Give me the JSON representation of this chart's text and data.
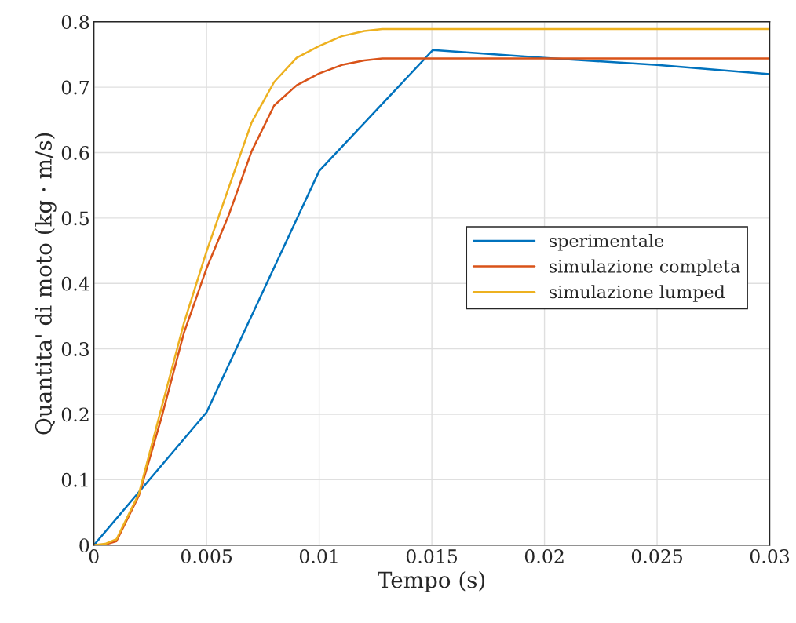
{
  "chart_data": {
    "type": "line",
    "xlabel": "Tempo (s)",
    "ylabel": "Quantita' di moto (kg · m/s)",
    "xlim": [
      0,
      0.03
    ],
    "ylim": [
      0,
      0.8
    ],
    "xticks": [
      0,
      0.005,
      0.01,
      0.015,
      0.02,
      0.025,
      0.03
    ],
    "yticks": [
      0,
      0.1,
      0.2,
      0.3,
      0.4,
      0.5,
      0.6,
      0.7,
      0.8
    ],
    "grid": true,
    "legend": "right",
    "line_style": "solid",
    "marker": "none",
    "series": [
      {
        "name": "sperimentale",
        "color": "#0072bd",
        "x": [
          0,
          0.005,
          0.01,
          0.01505,
          0.02,
          0.025,
          0.03
        ],
        "values": [
          0,
          0.203,
          0.572,
          0.757,
          0.745,
          0.734,
          0.72
        ]
      },
      {
        "name": "simulazione completa",
        "color": "#d95319",
        "x": [
          0,
          0.0005,
          0.001,
          0.002,
          0.003,
          0.004,
          0.005,
          0.006,
          0.007,
          0.008,
          0.009,
          0.01,
          0.011,
          0.012,
          0.0128,
          0.03
        ],
        "values": [
          0,
          0.001,
          0.006,
          0.076,
          0.195,
          0.325,
          0.423,
          0.506,
          0.602,
          0.672,
          0.703,
          0.721,
          0.734,
          0.741,
          0.744,
          0.744
        ]
      },
      {
        "name": "simulazione lumped",
        "color": "#edb120",
        "x": [
          0,
          0.0005,
          0.001,
          0.002,
          0.003,
          0.004,
          0.005,
          0.006,
          0.007,
          0.008,
          0.009,
          0.01,
          0.011,
          0.012,
          0.0128,
          0.03
        ],
        "values": [
          0,
          0.002,
          0.009,
          0.079,
          0.21,
          0.34,
          0.449,
          0.548,
          0.646,
          0.708,
          0.745,
          0.763,
          0.778,
          0.786,
          0.789,
          0.789
        ]
      }
    ]
  }
}
